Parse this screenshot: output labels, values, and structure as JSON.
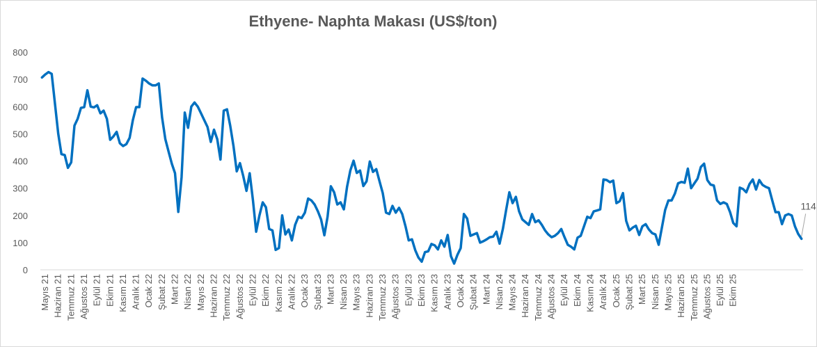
{
  "chart_data": {
    "type": "line",
    "title": "Ethyene- Naphta Makası (US$/ton)",
    "xlabel": "",
    "ylabel": "",
    "ylim": [
      0,
      800
    ],
    "yticks": [
      0,
      100,
      200,
      300,
      400,
      500,
      600,
      700,
      800
    ],
    "grid": false,
    "legend": "none",
    "x_tick_labels": [
      "Mayıs 21",
      "Haziran 21",
      "Temmuz 21",
      "Ağustos 21",
      "Eylül 21",
      "Ekim 21",
      "Kasım 21",
      "Aralık 21",
      "Ocak 22",
      "Şubat 22",
      "Mart 22",
      "Nisan 22",
      "Mayıs 22",
      "Haziran 22",
      "Temmuz 22",
      "Ağustos 22",
      "Eylül 22",
      "Ekim 22",
      "Kasım 22",
      "Aralık 22",
      "Ocak 23",
      "Şubat 23",
      "Mart 23",
      "Nisan 23",
      "Mayıs 23",
      "Haziran 23",
      "Temmuz 23",
      "Ağustos 23",
      "Eylül 23",
      "Ekim 23",
      "Kasım 23",
      "Aralık 23",
      "Ocak 24",
      "Şubat 24",
      "Mart 24",
      "Nisan 24",
      "Mayıs 24",
      "Haziran 24",
      "Temmuz 24",
      "Ağustos 24",
      "Eylül 24",
      "Ekim 24",
      "Kasım 24",
      "Aralık 24",
      "Ocak 25",
      "Şubat 25",
      "Mart 25",
      "Nisan 25",
      "Mayıs 25",
      "Haziran 25",
      "Temmuz 25",
      "Ağustos 25",
      "Eylül 25",
      "Ekim 25"
    ],
    "series": [
      {
        "color": "#0070c0",
        "values": [
          707,
          718,
          727,
          720,
          610,
          500,
          425,
          422,
          375,
          395,
          530,
          555,
          595,
          598,
          660,
          600,
          597,
          605,
          575,
          585,
          555,
          478,
          490,
          507,
          465,
          455,
          462,
          485,
          550,
          598,
          598,
          703,
          695,
          685,
          678,
          678,
          685,
          560,
          480,
          435,
          390,
          355,
          213,
          340,
          578,
          522,
          600,
          615,
          600,
          575,
          550,
          525,
          470,
          515,
          480,
          405,
          585,
          590,
          530,
          455,
          362,
          392,
          345,
          290,
          355,
          255,
          140,
          200,
          248,
          230,
          150,
          145,
          73,
          80,
          200,
          130,
          148,
          108,
          165,
          195,
          190,
          210,
          262,
          255,
          240,
          215,
          185,
          127,
          195,
          307,
          285,
          240,
          248,
          222,
          305,
          365,
          401,
          356,
          365,
          308,
          325,
          398,
          360,
          370,
          325,
          282,
          210,
          205,
          235,
          210,
          228,
          205,
          160,
          108,
          112,
          72,
          45,
          30,
          65,
          68,
          95,
          90,
          75,
          108,
          85,
          128,
          50,
          23,
          55,
          80,
          205,
          188,
          125,
          130,
          135,
          100,
          105,
          112,
          120,
          122,
          140,
          96,
          150,
          220,
          285,
          245,
          268,
          215,
          185,
          175,
          165,
          205,
          175,
          182,
          165,
          145,
          130,
          120,
          125,
          135,
          150,
          120,
          92,
          85,
          75,
          118,
          125,
          160,
          195,
          190,
          215,
          218,
          222,
          332,
          330,
          322,
          328,
          245,
          252,
          282,
          180,
          145,
          155,
          162,
          128,
          160,
          168,
          148,
          135,
          130,
          92,
          155,
          220,
          255,
          255,
          280,
          318,
          323,
          320,
          372,
          300,
          318,
          335,
          378,
          390,
          330,
          313,
          310,
          255,
          242,
          248,
          242,
          212,
          172,
          160,
          302,
          297,
          285,
          315,
          332,
          295,
          330,
          312,
          305,
          300,
          255,
          212,
          212,
          168,
          200,
          205,
          200,
          160,
          132,
          114
        ]
      }
    ],
    "data_labels": [
      {
        "text": "114",
        "value": 114
      }
    ]
  }
}
